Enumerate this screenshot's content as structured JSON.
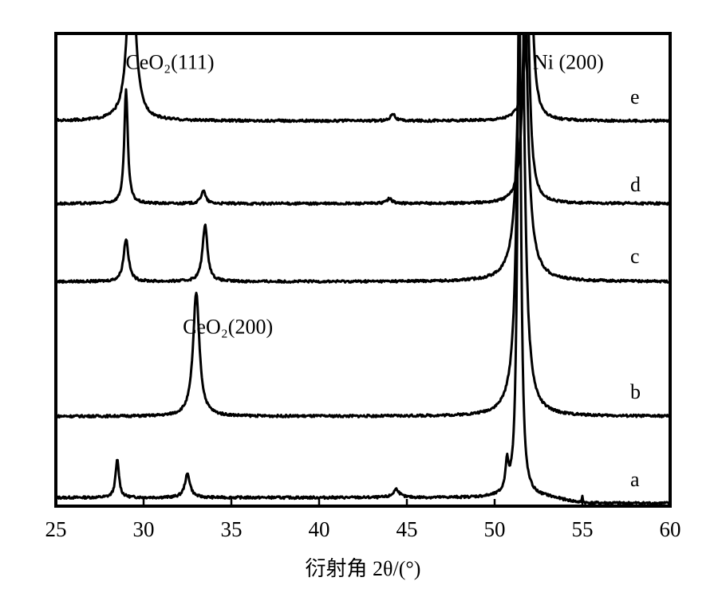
{
  "chart_data": {
    "type": "line",
    "title": "",
    "xlabel": "衍射角 2θ/(°)",
    "ylabel": "",
    "xlim": [
      25,
      60
    ],
    "ylim": [
      0,
      100
    ],
    "xticks": [
      "25",
      "30",
      "35",
      "40",
      "45",
      "50",
      "55",
      "60"
    ],
    "grid": false,
    "annotations": [
      {
        "text": "CeO₂(111)",
        "x": 31.5,
        "y": 94
      },
      {
        "text": "Ni (200)",
        "x": 54.2,
        "y": 94
      },
      {
        "text": "CeO₂(200)",
        "x": 34.8,
        "y": 38
      }
    ],
    "series": [
      {
        "name": "a",
        "baseline": 1.8,
        "peaks": [
          [
            28.5,
            8,
            0.12
          ],
          [
            32.5,
            5,
            0.18
          ],
          [
            44.4,
            1.8,
            0.2
          ],
          [
            50.7,
            6,
            0.1
          ],
          [
            51.4,
            110,
            0.12
          ],
          [
            55.0,
            1.5,
            0.03
          ]
        ]
      },
      {
        "name": "b",
        "baseline": 19,
        "peaks": [
          [
            33.0,
            26,
            0.22
          ],
          [
            51.5,
            120,
            0.2
          ]
        ]
      },
      {
        "name": "c",
        "baseline": 47.5,
        "peaks": [
          [
            29.0,
            9,
            0.17
          ],
          [
            33.5,
            12,
            0.17
          ],
          [
            51.6,
            100,
            0.22
          ]
        ]
      },
      {
        "name": "d",
        "baseline": 64,
        "peaks": [
          [
            29.0,
            24,
            0.12
          ],
          [
            33.4,
            2.8,
            0.15
          ],
          [
            44.0,
            1,
            0.2
          ],
          [
            51.8,
            60,
            0.18
          ]
        ]
      },
      {
        "name": "e",
        "baseline": 81.5,
        "peaks": [
          [
            29.3,
            40,
            0.25
          ],
          [
            44.2,
            1.6,
            0.15
          ],
          [
            52.0,
            40,
            0.2
          ]
        ]
      }
    ]
  }
}
